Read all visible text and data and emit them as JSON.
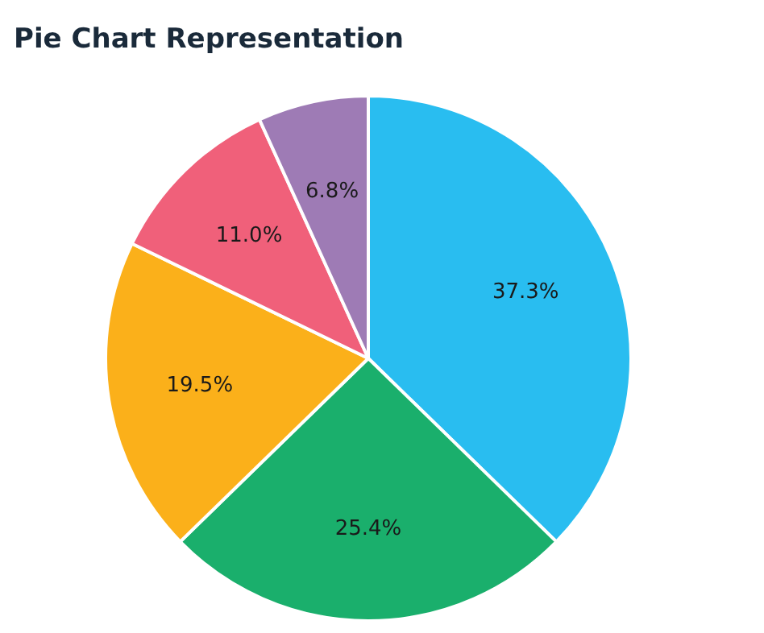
{
  "chart_data": {
    "type": "pie",
    "title": "Pie Chart Representation",
    "categories": [
      null,
      null,
      null,
      null,
      null
    ],
    "values": [
      37.3,
      25.4,
      19.5,
      11.0,
      6.8
    ],
    "value_labels": [
      "37.3%",
      "25.4%",
      "19.5%",
      "11.0%",
      "6.8%"
    ],
    "colors": [
      "#29bdf0",
      "#1aaf6c",
      "#fbb01a",
      "#f0607a",
      "#9e7bb5"
    ]
  }
}
